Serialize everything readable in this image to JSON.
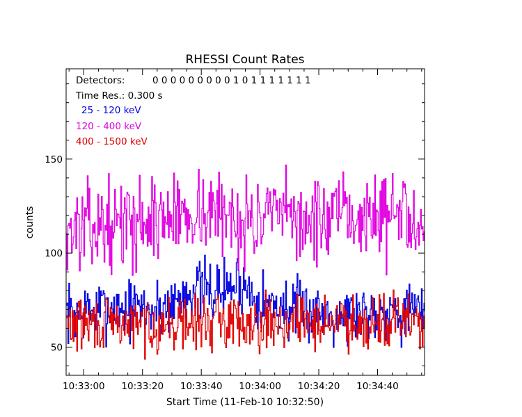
{
  "chart_data": {
    "type": "line",
    "title": "RHESSI Count Rates",
    "xlabel": "Start Time (11-Feb-10 10:32:50)",
    "ylabel": "counts",
    "x_unit": "seconds since 10:32:50",
    "xlim": [
      4,
      126
    ],
    "ylim": [
      35,
      198
    ],
    "x_ticks": [
      10,
      30,
      50,
      70,
      90,
      110
    ],
    "x_tick_labels": [
      "10:33:00",
      "10:33:20",
      "10:33:40",
      "10:34:00",
      "10:34:20",
      "10:34:40"
    ],
    "y_ticks": [
      50,
      100,
      150
    ],
    "y_tick_labels": [
      "50",
      "100",
      "150"
    ],
    "annotations": {
      "detectors_label": "Detectors:",
      "detectors_value": "0 0 0 0 0 0 0 0 0 1 0 1 1 1 1 1 1 1",
      "time_res": "Time Res.: 0.300 s"
    },
    "series": [
      {
        "name": "25 - 120 keV",
        "color": "#0000e0",
        "anchors": [
          [
            4,
            68
          ],
          [
            20,
            71
          ],
          [
            35,
            70
          ],
          [
            42,
            75
          ],
          [
            47,
            82
          ],
          [
            50,
            80
          ],
          [
            55,
            80
          ],
          [
            60,
            82
          ],
          [
            63,
            85
          ],
          [
            70,
            75
          ],
          [
            80,
            70
          ],
          [
            100,
            68
          ],
          [
            115,
            70
          ],
          [
            126,
            68
          ]
        ],
        "noise": 8,
        "seed": 7
      },
      {
        "name": "120 - 400 keV",
        "color": "#e000e0",
        "anchors": [
          [
            4,
            112
          ],
          [
            15,
            114
          ],
          [
            30,
            117
          ],
          [
            40,
            119
          ],
          [
            48,
            123
          ],
          [
            55,
            121
          ],
          [
            60,
            119
          ],
          [
            70,
            117
          ],
          [
            80,
            120
          ],
          [
            90,
            116
          ],
          [
            100,
            119
          ],
          [
            110,
            120
          ],
          [
            126,
            121
          ]
        ],
        "noise": 11,
        "seed": 13
      },
      {
        "name": "400 - 1500 keV",
        "color": "#e00000",
        "anchors": [
          [
            4,
            62
          ],
          [
            20,
            62
          ],
          [
            40,
            62
          ],
          [
            60,
            64
          ],
          [
            80,
            63
          ],
          [
            100,
            64
          ],
          [
            126,
            64
          ]
        ],
        "noise": 7,
        "seed": 29
      }
    ]
  }
}
